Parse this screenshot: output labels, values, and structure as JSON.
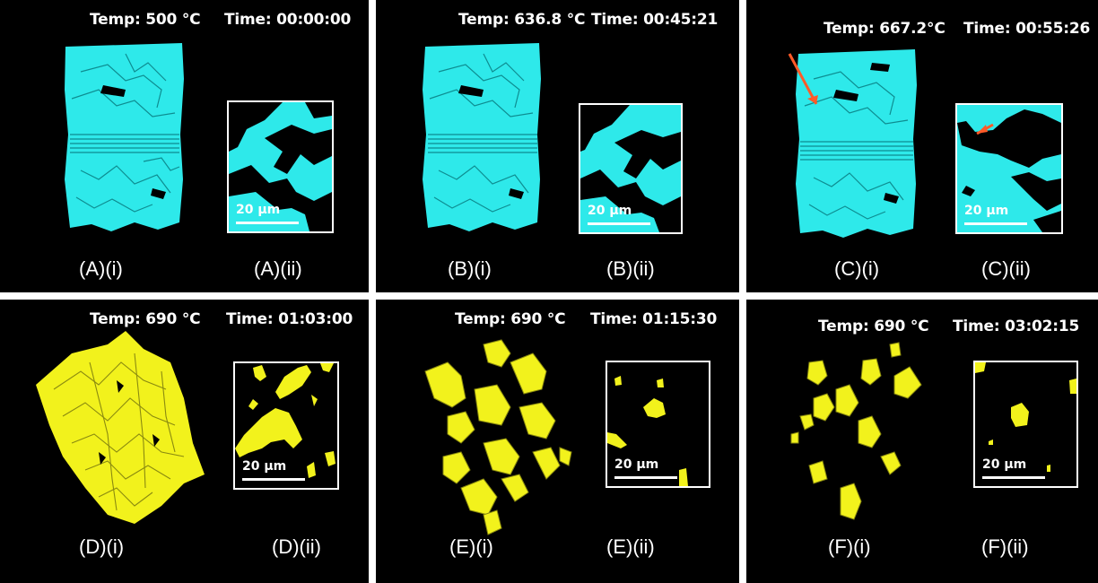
{
  "colors": {
    "cyan": "#2ee9ea",
    "yellow": "#f2f21c",
    "arrow": "#ff5a28"
  },
  "panels": [
    {
      "id": "A",
      "temp": "Temp: 500 °C",
      "time": "Time: 00:00:00",
      "label_i": "(A)(i)",
      "label_ii": "(A)(ii)",
      "scale": "20 µm"
    },
    {
      "id": "B",
      "temp": "Temp: 636.8 °C",
      "time": "Time: 00:45:21",
      "label_i": "(B)(i)",
      "label_ii": "(B)(ii)",
      "scale": "20 µm"
    },
    {
      "id": "C",
      "temp": "Temp: 667.2°C",
      "time": "Time: 00:55:26",
      "label_i": "(C)(i)",
      "label_ii": "(C)(ii)",
      "scale": "20 µm"
    },
    {
      "id": "D",
      "temp": "Temp: 690 °C",
      "time": "Time: 01:03:00",
      "label_i": "(D)(i)",
      "label_ii": "(D)(ii)",
      "scale": "20 µm"
    },
    {
      "id": "E",
      "temp": "Temp: 690 °C",
      "time": "Time: 01:15:30",
      "label_i": "(E)(i)",
      "label_ii": "(E)(ii)",
      "scale": "20 µm"
    },
    {
      "id": "F",
      "temp": "Temp: 690 °C",
      "time": "Time: 03:02:15",
      "label_i": "(F)(i)",
      "label_ii": "(F)(ii)",
      "scale": "20 µm"
    }
  ]
}
